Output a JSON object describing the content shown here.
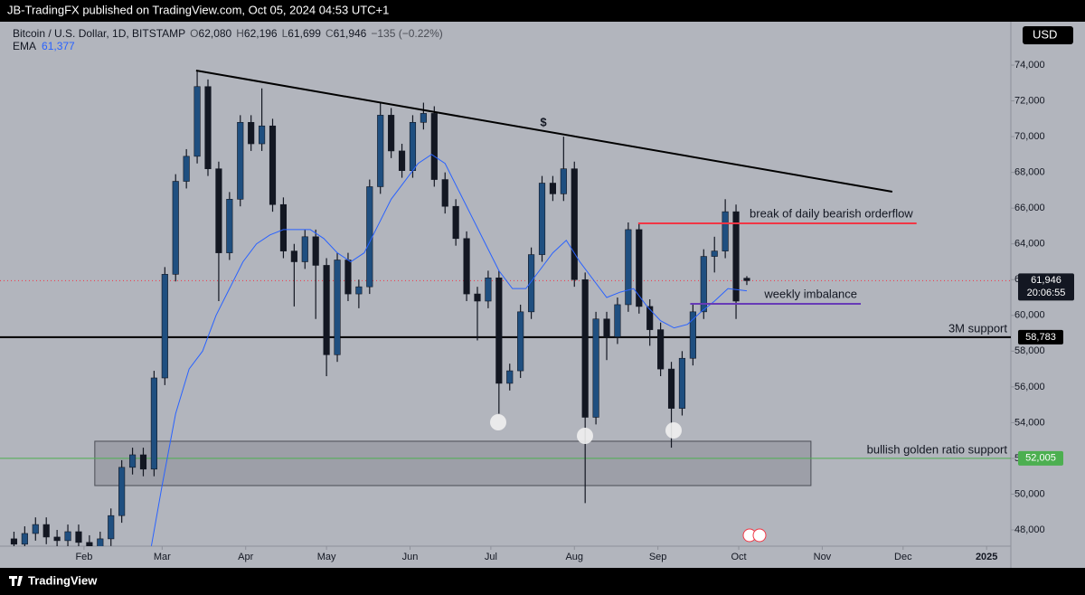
{
  "header": "JB-TradingFX published on TradingView.com, Oct 05, 2024 04:53 UTC+1",
  "footer": "TradingView",
  "currency": "USD",
  "chart_data": {
    "type": "candlestick",
    "symbol": "Bitcoin / U.S. Dollar, 1D, BITSTAMP",
    "legend_values": [
      "O",
      "62,080",
      "H",
      "62,196",
      "L",
      "61,699",
      "C",
      "61,946",
      "−135 (−0.22%)"
    ],
    "xlim": [
      2.5,
      375
    ],
    "ylim": [
      47090,
      76430
    ],
    "xticks": [
      {
        "value": 31,
        "label": "Feb"
      },
      {
        "value": 60,
        "label": "Mar"
      },
      {
        "value": 91,
        "label": "Apr"
      },
      {
        "value": 121,
        "label": "May"
      },
      {
        "value": 152,
        "label": "Jun"
      },
      {
        "value": 182,
        "label": "Jul"
      },
      {
        "value": 213,
        "label": "Aug"
      },
      {
        "value": 244,
        "label": "Sep"
      },
      {
        "value": 274,
        "label": "Oct"
      },
      {
        "value": 305,
        "label": "Nov"
      },
      {
        "value": 335,
        "label": "Dec"
      },
      {
        "value": 366,
        "label": "2025"
      }
    ],
    "yticks": [
      {
        "value": 48000,
        "label": "48,000"
      },
      {
        "value": 50000,
        "label": "50,000"
      },
      {
        "value": 52000,
        "label": "52,000"
      },
      {
        "value": 54000,
        "label": "54,000"
      },
      {
        "value": 56000,
        "label": "56,000"
      },
      {
        "value": 58000,
        "label": "58,000"
      },
      {
        "value": 60000,
        "label": "60,000"
      },
      {
        "value": 62000,
        "label": "62,000"
      },
      {
        "value": 64000,
        "label": "64,000"
      },
      {
        "value": 66000,
        "label": "66,000"
      },
      {
        "value": 68000,
        "label": "68,000"
      },
      {
        "value": 70000,
        "label": "70,000"
      },
      {
        "value": 72000,
        "label": "72,000"
      },
      {
        "value": 74000,
        "label": "74,000"
      }
    ],
    "up_color": "#1f4f80",
    "down_color": "#131722",
    "x": [
      5,
      9,
      13,
      17,
      21,
      25,
      29,
      33,
      37,
      41,
      45,
      49,
      53,
      57,
      61,
      65,
      69,
      73,
      77,
      81,
      85,
      89,
      93,
      97,
      101,
      105,
      109,
      113,
      117,
      121,
      125,
      129,
      133,
      137,
      141,
      145,
      149,
      153,
      157,
      161,
      165,
      169,
      173,
      177,
      181,
      185,
      189,
      193,
      197,
      201,
      205,
      209,
      213,
      217,
      221,
      225,
      229,
      233,
      237,
      241,
      245,
      249,
      253,
      257,
      261,
      265,
      269,
      273,
      277
    ],
    "open": [
      47500,
      47200,
      47800,
      48300,
      47600,
      47400,
      47900,
      47300,
      47000,
      47500,
      48800,
      51500,
      52200,
      51400,
      56500,
      62300,
      67500,
      68900,
      72800,
      68200,
      63500,
      66500,
      70800,
      69600,
      70600,
      66200,
      63600,
      63000,
      64400,
      62800,
      57800,
      63100,
      61200,
      61600,
      67200,
      71200,
      69200,
      68100,
      70800,
      71300,
      67600,
      66100,
      64300,
      61200,
      60800,
      62100,
      56200,
      56900,
      60200,
      63400,
      67400,
      66800,
      68200,
      62000,
      54300,
      59800,
      58800,
      60600,
      64800,
      60500,
      59200,
      57000,
      54800,
      57600,
      60200,
      63300,
      63600,
      65800,
      62080
    ],
    "high": [
      47900,
      48200,
      48700,
      48700,
      48000,
      48300,
      48300,
      47700,
      47900,
      49200,
      51900,
      52600,
      52600,
      56900,
      62700,
      67900,
      69300,
      73700,
      73200,
      68600,
      66900,
      71200,
      71200,
      72700,
      71000,
      66600,
      64000,
      64800,
      64800,
      63200,
      63500,
      63500,
      62000,
      67600,
      71900,
      71600,
      69600,
      71200,
      71900,
      71700,
      68000,
      66500,
      64700,
      61600,
      62500,
      62500,
      57300,
      60600,
      63800,
      67800,
      67800,
      70000,
      68600,
      62400,
      60200,
      60200,
      61000,
      65200,
      65200,
      60900,
      59600,
      57400,
      58000,
      60600,
      63700,
      64400,
      66500,
      66200,
      62196
    ],
    "low": [
      46800,
      46800,
      47400,
      47200,
      47000,
      47000,
      46900,
      46600,
      46600,
      47100,
      48400,
      51100,
      51000,
      51000,
      56100,
      61900,
      67100,
      68500,
      67800,
      60800,
      63100,
      66100,
      69200,
      69200,
      65800,
      63200,
      60500,
      62600,
      59800,
      56600,
      57400,
      60800,
      60400,
      61200,
      66800,
      68800,
      67700,
      67700,
      70400,
      67200,
      65700,
      63900,
      60800,
      58600,
      60400,
      54500,
      55800,
      56500,
      59800,
      63000,
      66400,
      66400,
      61600,
      49500,
      53900,
      57500,
      58400,
      60200,
      60100,
      58300,
      56600,
      52600,
      54400,
      57200,
      59800,
      62400,
      63200,
      59800,
      61699
    ],
    "close": [
      47200,
      47800,
      48300,
      47600,
      47400,
      47900,
      47300,
      47000,
      47500,
      48800,
      51500,
      52200,
      51400,
      56500,
      62300,
      67500,
      68900,
      72800,
      68200,
      63500,
      66500,
      70800,
      69600,
      70600,
      66200,
      63600,
      63000,
      64400,
      62800,
      57800,
      63100,
      61200,
      61600,
      67200,
      71200,
      69200,
      68100,
      70800,
      71300,
      67600,
      66100,
      64300,
      61200,
      60800,
      62100,
      56200,
      56900,
      60200,
      63400,
      67400,
      66800,
      68200,
      62000,
      54300,
      59800,
      58800,
      60600,
      64800,
      60500,
      59200,
      57000,
      54800,
      57600,
      60200,
      63300,
      63600,
      65800,
      60800,
      61946
    ],
    "ema": {
      "name": "EMA",
      "value_label": "61,377",
      "color": "#2962ff",
      "x": [
        56,
        60,
        65,
        70,
        75,
        80,
        85,
        90,
        95,
        100,
        105,
        110,
        115,
        120,
        125,
        130,
        135,
        140,
        145,
        150,
        155,
        160,
        165,
        170,
        175,
        180,
        185,
        190,
        195,
        200,
        205,
        210,
        215,
        220,
        225,
        230,
        235,
        240,
        245,
        250,
        255,
        260,
        265,
        270,
        277
      ],
      "values": [
        47100,
        50500,
        54500,
        57000,
        58000,
        60000,
        61500,
        63000,
        64000,
        64500,
        64800,
        64800,
        64800,
        64300,
        63500,
        63000,
        63500,
        65000,
        66500,
        67500,
        68500,
        69000,
        68500,
        67000,
        65500,
        64000,
        62500,
        61500,
        61500,
        62500,
        63500,
        64200,
        63000,
        62000,
        61000,
        61300,
        61500,
        60500,
        59700,
        59300,
        59500,
        60200,
        60800,
        61500,
        61377
      ]
    },
    "last": {
      "value": 61946,
      "label": "61,946",
      "countdown": "20:06:55",
      "color": "#f23645"
    },
    "levels": [
      {
        "value": 58783,
        "label": "58,783",
        "text": "3M support",
        "color": "#000000"
      },
      {
        "value": 52005,
        "label": "52,005",
        "text": "bullish golden ratio support",
        "color": "#4caf50"
      }
    ],
    "segments": [
      {
        "x": [
          72.6,
          331
        ],
        "values": [
          73700,
          66920
        ],
        "color": "#000000"
      },
      {
        "x": [
          236.7,
          340
        ],
        "values": [
          65150,
          65150
        ],
        "color": "#f23645",
        "text": "break of daily bearish orderflow"
      },
      {
        "x": [
          256,
          319.3
        ],
        "values": [
          60650,
          60650
        ],
        "color": "#673ab7",
        "text": "weekly imbalance"
      }
    ],
    "zone": {
      "x": [
        35,
        300.8
      ],
      "top": 52960,
      "bottom": 50480
    },
    "note": "$"
  }
}
